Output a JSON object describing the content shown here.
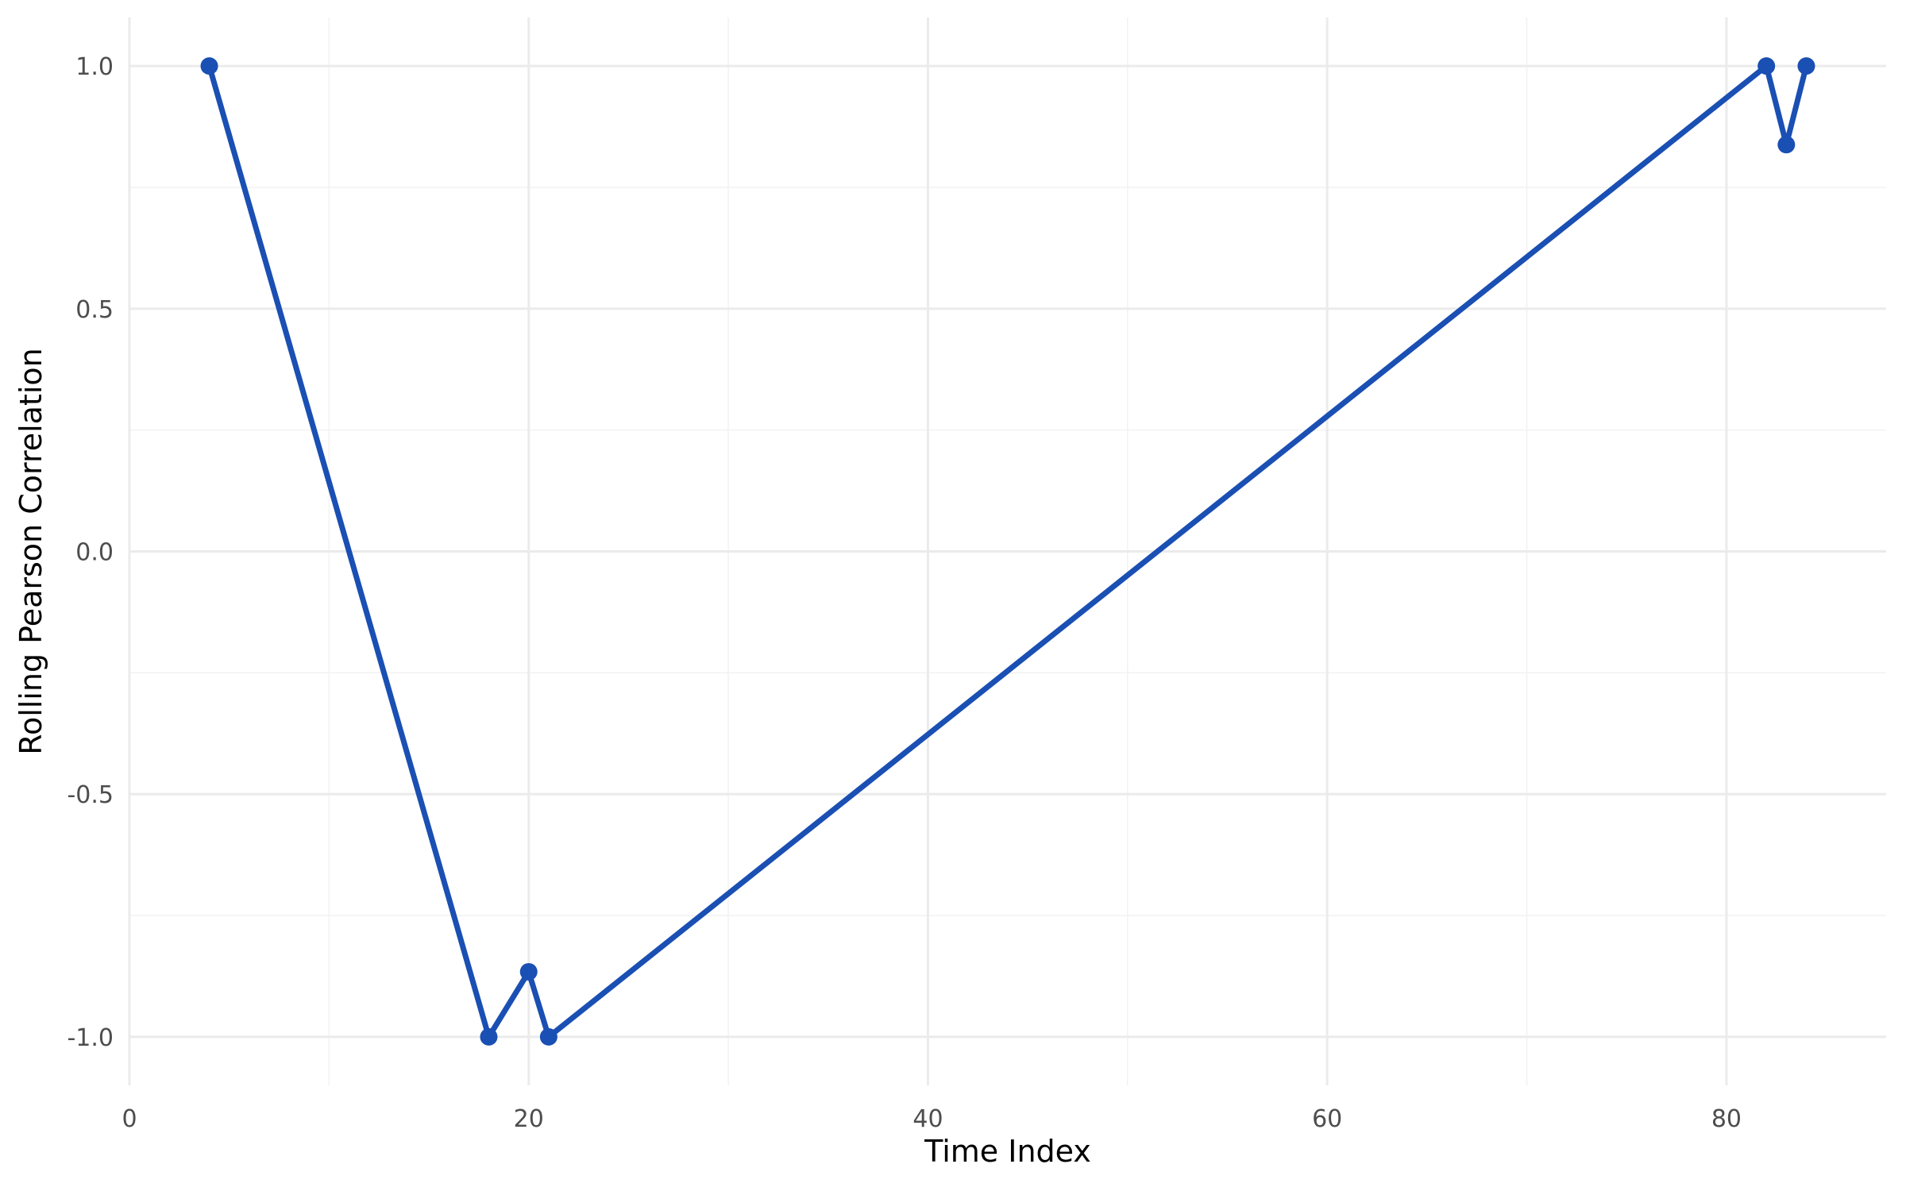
{
  "chart_data": {
    "type": "line",
    "title": "",
    "xlabel": "Time Index",
    "ylabel": "Rolling Pearson Correlation",
    "x_ticks": [
      "0",
      "20",
      "40",
      "60",
      "80"
    ],
    "y_ticks": [
      "-1.0",
      "-0.5",
      "0.0",
      "0.5",
      "1.0"
    ],
    "xlim": [
      0,
      88
    ],
    "ylim": [
      -1.1,
      1.1
    ],
    "grid": true,
    "series": [
      {
        "color": "#1a4fb3",
        "x": [
          4,
          18,
          20,
          21,
          82,
          83,
          84
        ],
        "y": [
          1.0,
          -1.0,
          -0.866,
          -1.0,
          1.0,
          0.838,
          1.0
        ]
      }
    ]
  }
}
